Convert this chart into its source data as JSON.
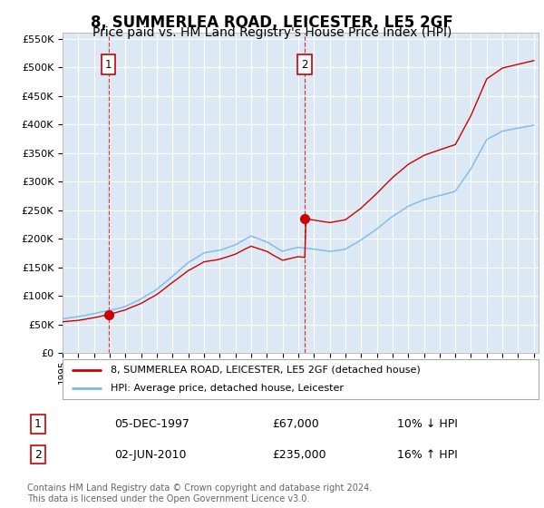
{
  "title": "8, SUMMERLEA ROAD, LEICESTER, LE5 2GF",
  "subtitle": "Price paid vs. HM Land Registry's House Price Index (HPI)",
  "title_fontsize": 12,
  "subtitle_fontsize": 10,
  "xlim": [
    1995.0,
    2025.3
  ],
  "ylim": [
    0,
    560000
  ],
  "yticks": [
    0,
    50000,
    100000,
    150000,
    200000,
    250000,
    300000,
    350000,
    400000,
    450000,
    500000,
    550000
  ],
  "ytick_labels": [
    "£0",
    "£50K",
    "£100K",
    "£150K",
    "£200K",
    "£250K",
    "£300K",
    "£350K",
    "£400K",
    "£450K",
    "£500K",
    "£550K"
  ],
  "xtick_years": [
    1995,
    1996,
    1997,
    1998,
    1999,
    2000,
    2001,
    2002,
    2003,
    2004,
    2005,
    2006,
    2007,
    2008,
    2009,
    2010,
    2011,
    2012,
    2013,
    2014,
    2015,
    2016,
    2017,
    2018,
    2019,
    2020,
    2021,
    2022,
    2023,
    2024,
    2025
  ],
  "bg_color": "#dce9f5",
  "fig_bg_color": "#ffffff",
  "grid_color": "#ffffff",
  "hpi_line_color": "#7ab8e8",
  "price_line_color": "#cc0000",
  "marker_color": "#cc0000",
  "sale1_year": 1997.92,
  "sale1_price": 67000,
  "sale2_year": 2010.42,
  "sale2_price": 235000,
  "hpi_key_years": [
    1995,
    1996,
    1997,
    1998,
    1999,
    2000,
    2001,
    2002,
    2003,
    2004,
    2005,
    2006,
    2007,
    2008,
    2009,
    2010,
    2011,
    2012,
    2013,
    2014,
    2015,
    2016,
    2017,
    2018,
    2019,
    2020,
    2021,
    2022,
    2023,
    2024,
    2025
  ],
  "hpi_key_vals": [
    60000,
    63000,
    68000,
    74000,
    82000,
    95000,
    112000,
    135000,
    158000,
    175000,
    180000,
    190000,
    205000,
    195000,
    178000,
    185000,
    182000,
    178000,
    182000,
    198000,
    218000,
    240000,
    258000,
    270000,
    278000,
    285000,
    325000,
    375000,
    390000,
    395000,
    400000
  ],
  "legend_label1": "8, SUMMERLEA ROAD, LEICESTER, LE5 2GF (detached house)",
  "legend_label2": "HPI: Average price, detached house, Leicester",
  "table_row1_num": "1",
  "table_row1_date": "05-DEC-1997",
  "table_row1_price": "£67,000",
  "table_row1_hpi": "10% ↓ HPI",
  "table_row2_num": "2",
  "table_row2_date": "02-JUN-2010",
  "table_row2_price": "£235,000",
  "table_row2_hpi": "16% ↑ HPI",
  "footer": "Contains HM Land Registry data © Crown copyright and database right 2024.\nThis data is licensed under the Open Government Licence v3.0.",
  "font_family": "DejaVu Sans"
}
